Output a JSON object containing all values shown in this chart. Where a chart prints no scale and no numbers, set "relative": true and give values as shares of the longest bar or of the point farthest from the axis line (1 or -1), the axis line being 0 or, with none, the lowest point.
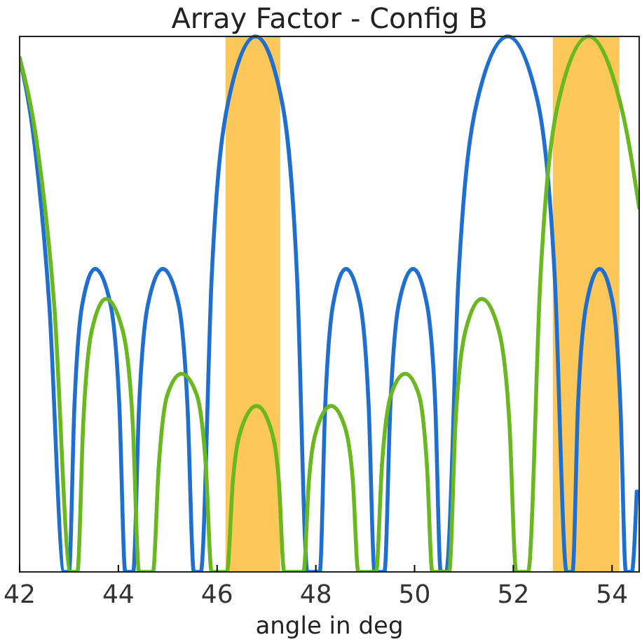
{
  "chart_data": {
    "type": "line",
    "title": "Array Factor - Config B",
    "xlabel": "angle in deg",
    "relative": true,
    "xlim": [
      42,
      54.55
    ],
    "xticks": [
      42,
      44,
      46,
      48,
      50,
      52,
      54
    ],
    "grid": false,
    "marker": "none",
    "line_style": "solid",
    "bands": [
      {
        "axis": "x",
        "from": 46.17,
        "to": 47.28,
        "color": "#fdc75a"
      },
      {
        "axis": "x",
        "from": 52.8,
        "to": 54.15,
        "color": "#fdc75a"
      }
    ],
    "series": [
      {
        "color": "#1f6fd0",
        "x": [
          42,
          42.3,
          42.6,
          42.9,
          43.0,
          43.11,
          43.27,
          43.53,
          43.84,
          44.02,
          44.14,
          44.3,
          44.42,
          44.6,
          44.9,
          45.22,
          45.4,
          45.53,
          45.67,
          45.89,
          46.23,
          46.78,
          47.31,
          47.62,
          47.83,
          48.08,
          48.19,
          48.35,
          48.61,
          48.9,
          49.07,
          49.19,
          49.39,
          49.51,
          49.68,
          49.97,
          50.25,
          50.42,
          50.53,
          50.64,
          50.89,
          51.27,
          51.89,
          52.49,
          52.84,
          53.08,
          53.2,
          53.31,
          53.48,
          53.75,
          54.02,
          54.17,
          54.28,
          54.4,
          54.5
        ],
        "values": [
          0.96,
          0.8,
          0.5,
          0,
          0,
          0.31,
          0.5,
          0.566,
          0.5,
          0.31,
          0,
          0,
          0.31,
          0.5,
          0.566,
          0.5,
          0.31,
          0,
          0,
          0.55,
          0.88,
          1,
          0.88,
          0.55,
          0,
          0,
          0.31,
          0.5,
          0.566,
          0.5,
          0.31,
          0,
          0,
          0.31,
          0.5,
          0.566,
          0.5,
          0.31,
          0,
          0,
          0.55,
          0.88,
          1,
          0.88,
          0.55,
          0,
          0,
          0.31,
          0.5,
          0.566,
          0.5,
          0.31,
          0,
          0,
          0.15
        ]
      },
      {
        "color": "#6ab820",
        "x": [
          42,
          42.35,
          42.7,
          43.03,
          43.17,
          43.29,
          43.46,
          43.75,
          44.09,
          44.29,
          44.42,
          44.7,
          44.82,
          44.99,
          45.28,
          45.59,
          45.77,
          45.89,
          46.2,
          46.32,
          46.5,
          46.8,
          47.08,
          47.25,
          47.36,
          47.75,
          47.86,
          48.03,
          48.31,
          48.59,
          48.75,
          48.86,
          49.22,
          49.34,
          49.52,
          49.81,
          50.09,
          50.25,
          50.36,
          50.7,
          50.83,
          51.03,
          51.36,
          51.71,
          51.92,
          52.06,
          52.3,
          52.55,
          52.92,
          53.53,
          54.0,
          54.3,
          54.55
        ],
        "values": [
          0.96,
          0.8,
          0.5,
          0,
          0,
          0.28,
          0.45,
          0.51,
          0.45,
          0.28,
          0,
          0,
          0.2,
          0.33,
          0.37,
          0.33,
          0.2,
          0,
          0,
          0.17,
          0.27,
          0.31,
          0.27,
          0.17,
          0,
          0,
          0.17,
          0.27,
          0.31,
          0.27,
          0.17,
          0,
          0,
          0.2,
          0.33,
          0.37,
          0.33,
          0.2,
          0,
          0,
          0.28,
          0.45,
          0.51,
          0.45,
          0.28,
          0,
          0,
          0.55,
          0.88,
          1,
          0.93,
          0.82,
          0.68
        ]
      }
    ]
  }
}
